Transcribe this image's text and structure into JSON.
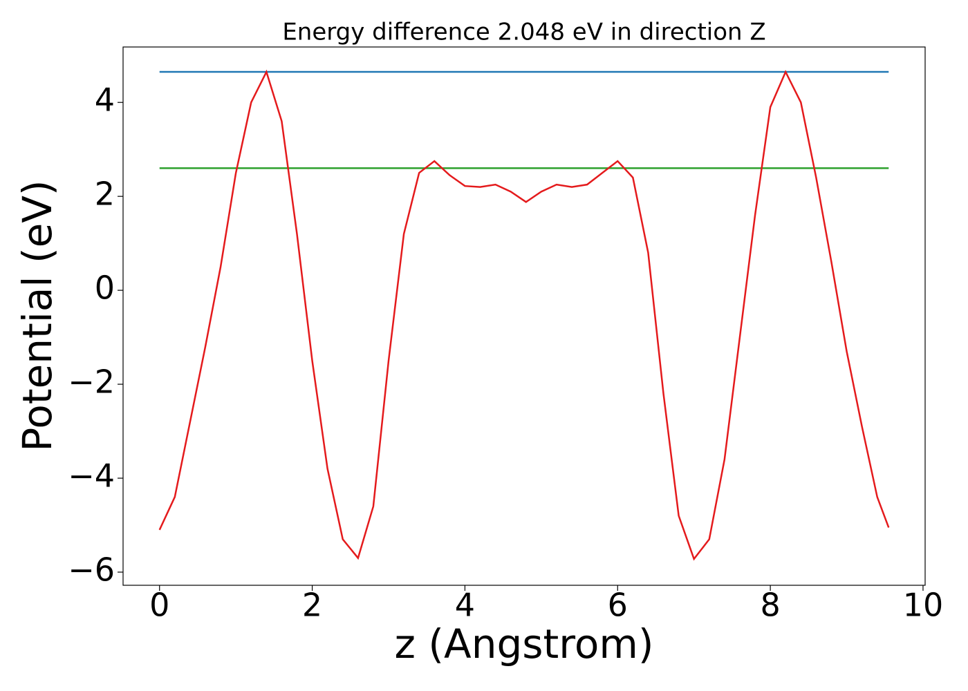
{
  "chart_data": {
    "type": "line",
    "title": "Energy difference 2.048 eV in direction Z",
    "x_label": "z (Angstrom)",
    "y_label": "Potential (eV)",
    "xlim": [
      -0.4775,
      10.0275
    ],
    "ylim": [
      -6.28,
      5.18
    ],
    "xticks": [
      0,
      2,
      4,
      6,
      8,
      10
    ],
    "yticks": [
      {
        "value": -6,
        "label": "−6"
      },
      {
        "value": -4,
        "label": "−4"
      },
      {
        "value": -2,
        "label": "−2"
      },
      0,
      2,
      4
    ],
    "grid": false,
    "series": [
      {
        "color": "#e41a1c",
        "x": [
          0,
          0.2,
          0.4,
          0.6,
          0.8,
          1.0,
          1.2,
          1.4,
          1.6,
          1.8,
          2.0,
          2.2,
          2.4,
          2.6,
          2.8,
          3.0,
          3.2,
          3.4,
          3.6,
          3.8,
          4.0,
          4.2,
          4.4,
          4.6,
          4.8,
          5.0,
          5.2,
          5.4,
          5.6,
          5.8,
          6.0,
          6.2,
          6.4,
          6.6,
          6.8,
          7.0,
          7.2,
          7.4,
          7.6,
          7.8,
          8.0,
          8.2,
          8.4,
          8.6,
          8.8,
          9.0,
          9.2,
          9.4,
          9.55
        ],
        "values": [
          -5.1,
          -4.4,
          -2.8,
          -1.2,
          0.5,
          2.5,
          4.0,
          4.65,
          3.6,
          1.2,
          -1.5,
          -3.8,
          -5.3,
          -5.7,
          -4.6,
          -1.5,
          1.2,
          2.5,
          2.75,
          2.45,
          2.22,
          2.2,
          2.25,
          2.1,
          1.88,
          2.1,
          2.25,
          2.2,
          2.25,
          2.5,
          2.75,
          2.4,
          0.8,
          -2.2,
          -4.8,
          -5.72,
          -5.3,
          -3.6,
          -1.0,
          1.6,
          3.9,
          4.65,
          4.0,
          2.4,
          0.6,
          -1.3,
          -2.9,
          -4.4,
          -5.05
        ]
      },
      {
        "color": "#1f77b4",
        "x": [
          0,
          9.55
        ],
        "values": [
          4.65,
          4.65
        ]
      },
      {
        "color": "#2ca02c",
        "x": [
          0,
          9.55
        ],
        "values": [
          2.6,
          2.6
        ]
      }
    ]
  }
}
